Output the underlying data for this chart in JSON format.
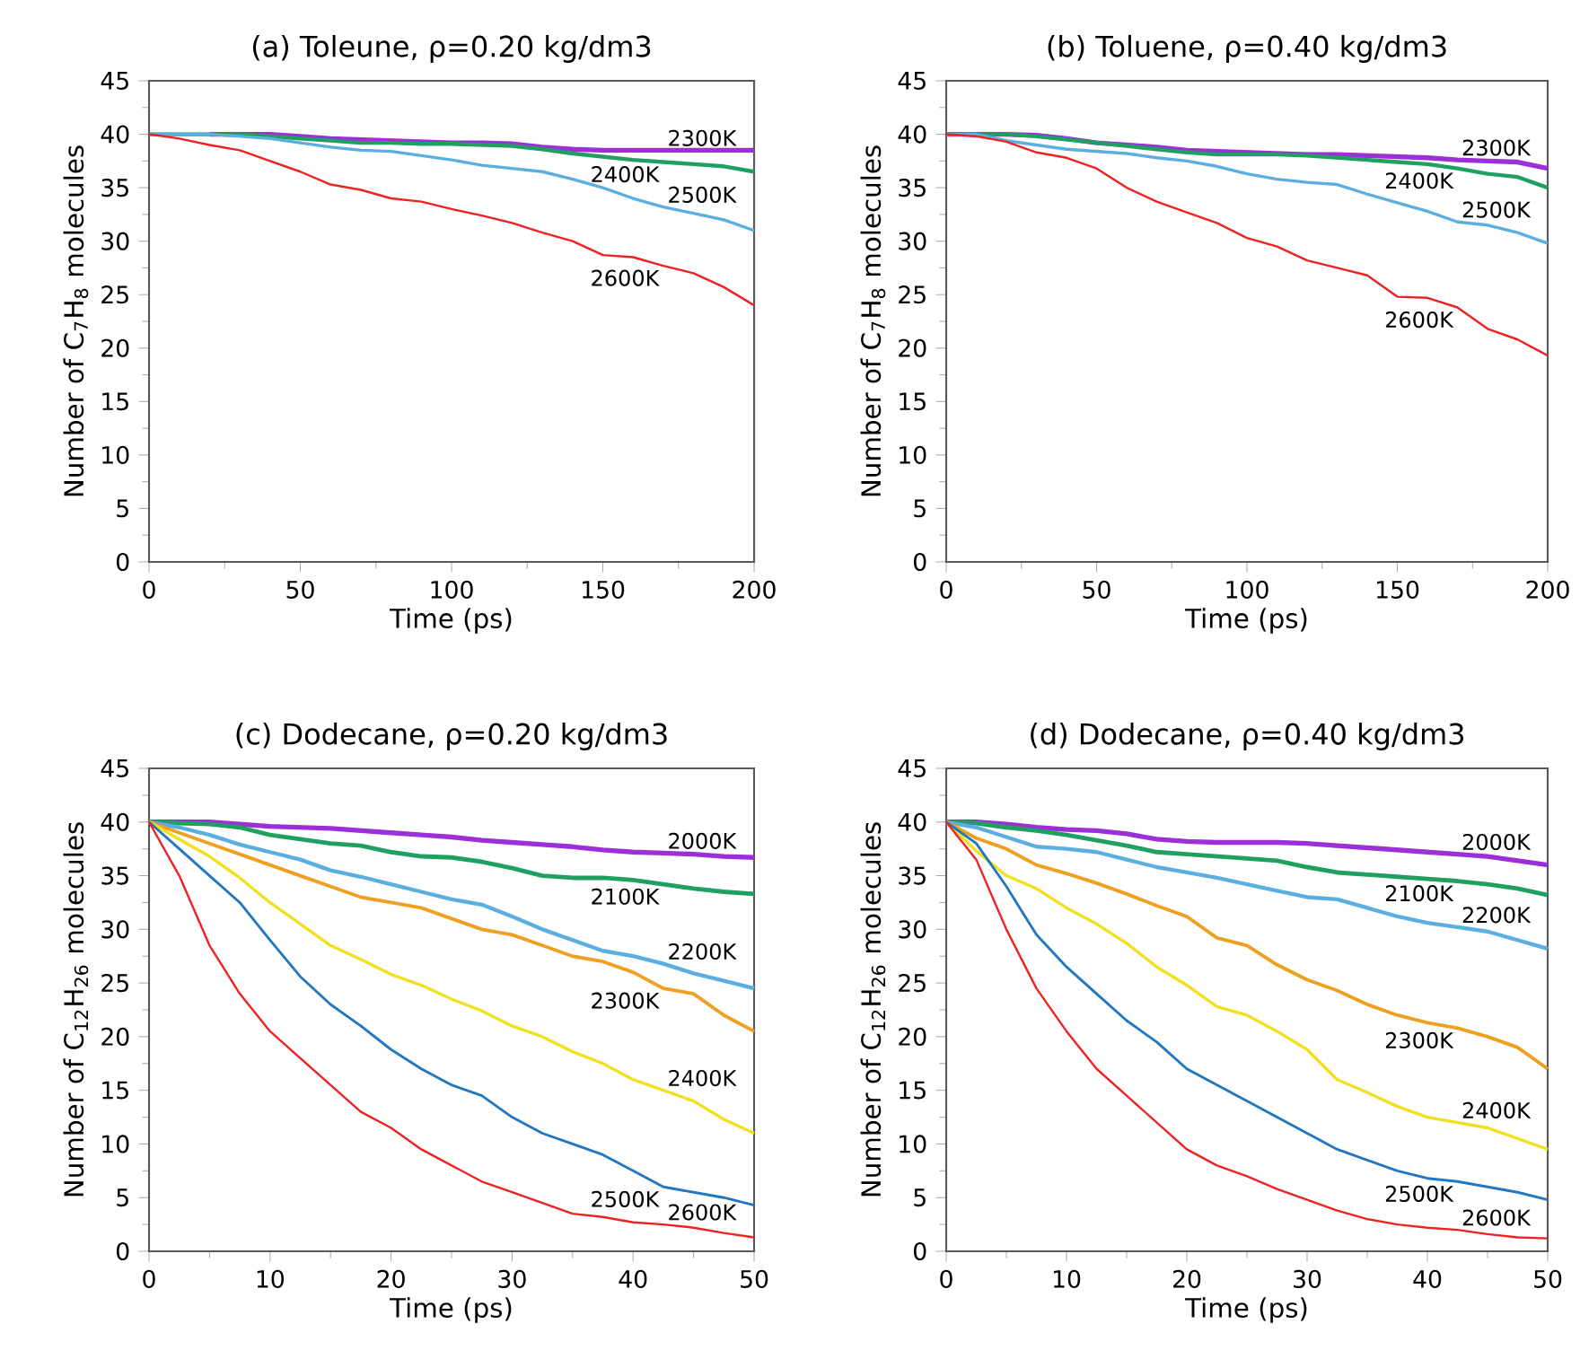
{
  "chart_data": [
    {
      "type": "line",
      "title": "(a) Toleune, ρ=0.20 kg/dm3",
      "xlabel": "Time (ps)",
      "ylabel": "Number of C$_{7}$H$_{8}$ molecules",
      "x": [
        0,
        10,
        20,
        30,
        40,
        50,
        60,
        70,
        80,
        90,
        100,
        110,
        120,
        130,
        140,
        150,
        160,
        170,
        180,
        190,
        200
      ],
      "xlim": [
        0,
        200
      ],
      "ylim": [
        0,
        45
      ],
      "xticks": [
        0,
        50,
        100,
        150,
        200
      ],
      "yticks": [
        0,
        5,
        10,
        15,
        20,
        25,
        30,
        35,
        40,
        45
      ],
      "series": [
        {
          "name": "2300K",
          "color": "#9b30d9",
          "values": [
            null,
            null,
            40,
            40,
            40,
            39.8,
            39.6,
            39.5,
            39.4,
            39.3,
            39.2,
            39.2,
            39.1,
            38.8,
            38.6,
            38.5,
            38.5,
            38.5,
            38.5,
            38.5,
            38.5
          ]
        },
        {
          "name": "2400K",
          "color": "#1fa060",
          "values": [
            40,
            40,
            40,
            40,
            39.8,
            39.6,
            39.4,
            39.2,
            39.2,
            39.1,
            39.1,
            39.0,
            38.9,
            38.6,
            38.2,
            37.9,
            37.6,
            37.4,
            37.2,
            37.0,
            36.5
          ]
        },
        {
          "name": "2500K",
          "color": "#5aaee0",
          "values": [
            40,
            40,
            40,
            39.8,
            39.6,
            39.2,
            38.8,
            38.5,
            38.4,
            38.0,
            37.6,
            37.1,
            36.8,
            36.5,
            35.8,
            35.0,
            34.0,
            33.2,
            32.6,
            32.0,
            31.0
          ]
        },
        {
          "name": "2600K",
          "color": "#ee2222",
          "values": [
            40,
            39.6,
            39.0,
            38.5,
            37.5,
            36.5,
            35.3,
            34.8,
            34.0,
            33.7,
            33.0,
            32.4,
            31.7,
            30.8,
            30.0,
            28.7,
            28.5,
            27.7,
            27.0,
            25.7,
            24.0
          ]
        }
      ]
    },
    {
      "type": "line",
      "title": "(b) Toluene, ρ=0.40 kg/dm3",
      "xlabel": "Time (ps)",
      "ylabel": "Number of C$_{7}$H$_{8}$ molecules",
      "x": [
        0,
        10,
        20,
        30,
        40,
        50,
        60,
        70,
        80,
        90,
        100,
        110,
        120,
        130,
        140,
        150,
        160,
        170,
        180,
        190,
        200
      ],
      "xlim": [
        0,
        200
      ],
      "ylim": [
        0,
        45
      ],
      "xticks": [
        0,
        50,
        100,
        150,
        200
      ],
      "yticks": [
        0,
        5,
        10,
        15,
        20,
        25,
        30,
        35,
        40,
        45
      ],
      "series": [
        {
          "name": "2300K",
          "color": "#9b30d9",
          "values": [
            40,
            40,
            40,
            39.9,
            39.6,
            39.2,
            39.0,
            38.8,
            38.5,
            38.4,
            38.3,
            38.2,
            38.1,
            38.1,
            38.0,
            37.9,
            37.8,
            37.6,
            37.5,
            37.4,
            36.8
          ]
        },
        {
          "name": "2400K",
          "color": "#1fa060",
          "values": [
            40,
            40,
            40,
            39.8,
            39.5,
            39.2,
            38.9,
            38.6,
            38.3,
            38.1,
            38.1,
            38.1,
            38.0,
            37.8,
            37.6,
            37.4,
            37.2,
            36.8,
            36.3,
            36.0,
            35.0
          ]
        },
        {
          "name": "2500K",
          "color": "#5aaee0",
          "values": [
            40,
            40,
            39.4,
            39.0,
            38.6,
            38.4,
            38.2,
            37.8,
            37.5,
            37.0,
            36.3,
            35.8,
            35.5,
            35.3,
            34.4,
            33.6,
            32.8,
            31.8,
            31.5,
            30.8,
            29.8
          ]
        },
        {
          "name": "2600K",
          "color": "#ee2222",
          "values": [
            40,
            39.8,
            39.3,
            38.3,
            37.8,
            36.8,
            35.0,
            33.7,
            32.7,
            31.7,
            30.3,
            29.5,
            28.2,
            27.5,
            26.8,
            24.8,
            24.7,
            23.8,
            21.8,
            20.8,
            19.3
          ]
        }
      ]
    },
    {
      "type": "line",
      "title": "(c) Dodecane, ρ=0.20 kg/dm3",
      "xlabel": "Time (ps)",
      "ylabel": "Number of C$_{12}$H$_{26}$ molecules",
      "x": [
        0,
        2.5,
        5,
        7.5,
        10,
        12.5,
        15,
        17.5,
        20,
        22.5,
        25,
        27.5,
        30,
        32.5,
        35,
        37.5,
        40,
        42.5,
        45,
        47.5,
        50
      ],
      "xlim": [
        0,
        50
      ],
      "ylim": [
        0,
        45
      ],
      "xticks": [
        0,
        10,
        20,
        30,
        40,
        50
      ],
      "yticks": [
        0,
        5,
        10,
        15,
        20,
        25,
        30,
        35,
        40,
        45
      ],
      "series": [
        {
          "name": "2000K",
          "color": "#9b30d9",
          "values": [
            40,
            40,
            40,
            39.8,
            39.6,
            39.5,
            39.4,
            39.2,
            39.0,
            38.8,
            38.6,
            38.3,
            38.1,
            37.9,
            37.7,
            37.4,
            37.2,
            37.1,
            37.0,
            36.8,
            36.7
          ]
        },
        {
          "name": "2100K",
          "color": "#1fa060",
          "values": [
            40,
            39.9,
            39.8,
            39.5,
            38.8,
            38.4,
            38.0,
            37.8,
            37.2,
            36.8,
            36.7,
            36.3,
            35.7,
            35.0,
            34.8,
            34.8,
            34.6,
            34.2,
            33.8,
            33.5,
            33.3
          ]
        },
        {
          "name": "2200K",
          "color": "#5aaee0",
          "values": [
            40,
            39.5,
            38.8,
            37.9,
            37.2,
            36.5,
            35.5,
            34.9,
            34.2,
            33.5,
            32.8,
            32.3,
            31.2,
            30.0,
            29.0,
            28.0,
            27.5,
            26.8,
            25.9,
            25.2,
            24.5
          ]
        },
        {
          "name": "2300K",
          "color": "#f0a020",
          "values": [
            40,
            39.0,
            38.0,
            37.0,
            36.0,
            35.0,
            34.0,
            33.0,
            32.5,
            32.0,
            31.0,
            30.0,
            29.5,
            28.5,
            27.5,
            27.0,
            26.0,
            24.5,
            24.0,
            22.0,
            20.5
          ]
        },
        {
          "name": "2400K",
          "color": "#f0e020",
          "values": [
            40,
            38.4,
            36.8,
            34.8,
            32.5,
            30.5,
            28.5,
            27.2,
            25.8,
            24.8,
            23.5,
            22.4,
            21.0,
            20.0,
            18.6,
            17.5,
            16.0,
            15.0,
            14.0,
            12.3,
            11.0
          ]
        },
        {
          "name": "2500K",
          "color": "#2277c0",
          "values": [
            40,
            37.5,
            35.0,
            32.5,
            29.0,
            25.6,
            23.0,
            21.0,
            18.8,
            17.0,
            15.5,
            14.5,
            12.5,
            11.0,
            10.0,
            9.0,
            7.5,
            6.0,
            5.5,
            5.0,
            4.3
          ]
        },
        {
          "name": "2600K",
          "color": "#ee2222",
          "values": [
            40,
            35.0,
            28.5,
            24.0,
            20.5,
            18.0,
            15.5,
            13.0,
            11.5,
            9.5,
            8.0,
            6.5,
            5.5,
            4.5,
            3.5,
            3.2,
            2.7,
            2.5,
            2.2,
            1.7,
            1.3
          ]
        }
      ]
    },
    {
      "type": "line",
      "title": "(d) Dodecane, ρ=0.40 kg/dm3",
      "xlabel": "Time (ps)",
      "ylabel": "Number of C$_{12}$H$_{26}$ molecules",
      "x": [
        0,
        2.5,
        5,
        7.5,
        10,
        12.5,
        15,
        17.5,
        20,
        22.5,
        25,
        27.5,
        30,
        32.5,
        35,
        37.5,
        40,
        42.5,
        45,
        47.5,
        50
      ],
      "xlim": [
        0,
        50
      ],
      "ylim": [
        0,
        45
      ],
      "xticks": [
        0,
        10,
        20,
        30,
        40,
        50
      ],
      "yticks": [
        0,
        5,
        10,
        15,
        20,
        25,
        30,
        35,
        40,
        45
      ],
      "series": [
        {
          "name": "2000K",
          "color": "#9b30d9",
          "values": [
            40,
            40,
            39.8,
            39.5,
            39.3,
            39.2,
            38.9,
            38.4,
            38.2,
            38.1,
            38.1,
            38.1,
            38.0,
            37.8,
            37.6,
            37.4,
            37.2,
            37.0,
            36.8,
            36.4,
            36.0
          ]
        },
        {
          "name": "2100K",
          "color": "#1fa060",
          "values": [
            40,
            39.9,
            39.5,
            39.2,
            38.8,
            38.3,
            37.8,
            37.2,
            37.0,
            36.8,
            36.6,
            36.4,
            35.8,
            35.3,
            35.1,
            34.9,
            34.7,
            34.5,
            34.2,
            33.8,
            33.2
          ]
        },
        {
          "name": "2200K",
          "color": "#5aaee0",
          "values": [
            40,
            39.5,
            38.6,
            37.7,
            37.5,
            37.2,
            36.5,
            35.8,
            35.3,
            34.8,
            34.2,
            33.6,
            33.0,
            32.8,
            32.0,
            31.2,
            30.6,
            30.2,
            29.8,
            29.0,
            28.2
          ]
        },
        {
          "name": "2300K",
          "color": "#f0a020",
          "values": [
            40,
            38.5,
            37.5,
            36.0,
            35.2,
            34.3,
            33.3,
            32.2,
            31.2,
            29.2,
            28.5,
            26.7,
            25.3,
            24.3,
            23.0,
            22.0,
            21.3,
            20.8,
            20.0,
            19.0,
            17.0
          ]
        },
        {
          "name": "2400K",
          "color": "#f0e020",
          "values": [
            40,
            37.3,
            35.0,
            33.8,
            32.0,
            30.5,
            28.7,
            26.5,
            24.8,
            22.8,
            22.0,
            20.5,
            18.8,
            16.0,
            14.8,
            13.5,
            12.5,
            12.0,
            11.5,
            10.5,
            9.5
          ]
        },
        {
          "name": "2500K",
          "color": "#2277c0",
          "values": [
            40,
            38.0,
            34.0,
            29.5,
            26.5,
            24.0,
            21.5,
            19.5,
            17.0,
            15.5,
            14.0,
            12.5,
            11.0,
            9.5,
            8.5,
            7.5,
            6.8,
            6.5,
            6.0,
            5.5,
            4.8
          ]
        },
        {
          "name": "2600K",
          "color": "#ee2222",
          "values": [
            40,
            36.5,
            30.0,
            24.5,
            20.5,
            17.0,
            14.5,
            12.0,
            9.5,
            8.0,
            7.0,
            5.8,
            4.8,
            3.8,
            3.0,
            2.5,
            2.2,
            2.0,
            1.6,
            1.3,
            1.2
          ]
        }
      ]
    }
  ]
}
